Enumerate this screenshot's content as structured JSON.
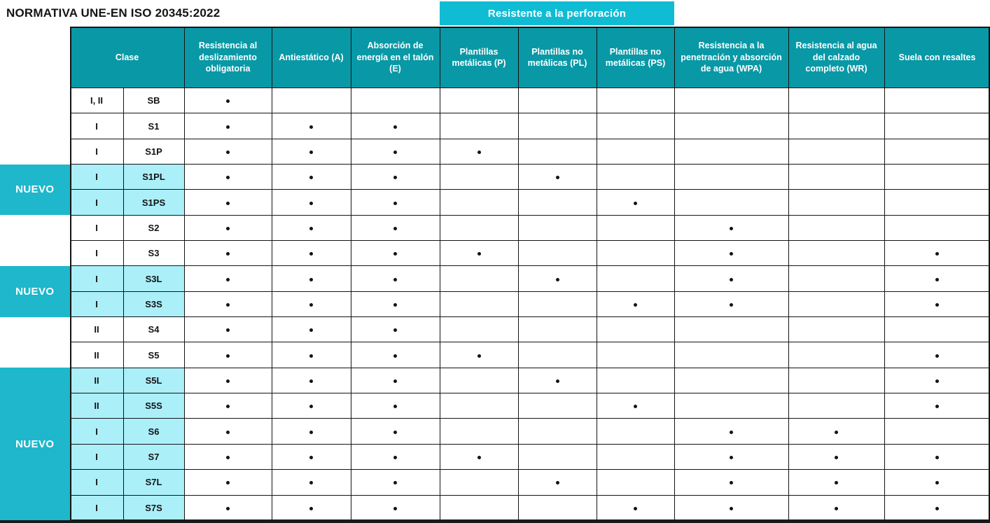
{
  "title": "NORMATIVA UNE-EN ISO 20345:2022",
  "banner": {
    "label": "Resistente a la perforación"
  },
  "nuevo_label": "NUEVO",
  "colors": {
    "header_teal": "#0998A6",
    "banner_cyan": "#0FBCD4",
    "nuevo_cyan": "#1EB7CC",
    "row_highlight": "#ABEFF9",
    "grid_border": "#141414",
    "dot": "#141414"
  },
  "table": {
    "clase_header": "Clase",
    "columns": [
      {
        "id": "slip",
        "label": "Resistencia al deslizamiento obligatoria"
      },
      {
        "id": "a",
        "label": "Antiestático (A)"
      },
      {
        "id": "e",
        "label": "Absorción de energía en el talón (E)"
      },
      {
        "id": "p",
        "label": "Plantillas metálicas (P)"
      },
      {
        "id": "pl",
        "label": "Plantillas no metálicas (PL)"
      },
      {
        "id": "ps",
        "label": "Plantillas no metálicas (PS)"
      },
      {
        "id": "wpa",
        "label": "Resistencia a la penetración y absorción de agua (WPA)"
      },
      {
        "id": "wr",
        "label": "Resistencia al agua del calzado completo (WR)"
      },
      {
        "id": "lug",
        "label": "Suela con resaltes"
      }
    ],
    "rows": [
      {
        "clase": "I, II",
        "code": "SB",
        "nuevo": false,
        "dots": [
          1,
          0,
          0,
          0,
          0,
          0,
          0,
          0,
          0
        ]
      },
      {
        "clase": "I",
        "code": "S1",
        "nuevo": false,
        "dots": [
          1,
          1,
          1,
          0,
          0,
          0,
          0,
          0,
          0
        ]
      },
      {
        "clase": "I",
        "code": "S1P",
        "nuevo": false,
        "dots": [
          1,
          1,
          1,
          1,
          0,
          0,
          0,
          0,
          0
        ]
      },
      {
        "clase": "I",
        "code": "S1PL",
        "nuevo": true,
        "dots": [
          1,
          1,
          1,
          0,
          1,
          0,
          0,
          0,
          0
        ]
      },
      {
        "clase": "I",
        "code": "S1PS",
        "nuevo": true,
        "dots": [
          1,
          1,
          1,
          0,
          0,
          1,
          0,
          0,
          0
        ]
      },
      {
        "clase": "I",
        "code": "S2",
        "nuevo": false,
        "dots": [
          1,
          1,
          1,
          0,
          0,
          0,
          1,
          0,
          0
        ]
      },
      {
        "clase": "I",
        "code": "S3",
        "nuevo": false,
        "dots": [
          1,
          1,
          1,
          1,
          0,
          0,
          1,
          0,
          1
        ]
      },
      {
        "clase": "I",
        "code": "S3L",
        "nuevo": true,
        "dots": [
          1,
          1,
          1,
          0,
          1,
          0,
          1,
          0,
          1
        ]
      },
      {
        "clase": "I",
        "code": "S3S",
        "nuevo": true,
        "dots": [
          1,
          1,
          1,
          0,
          0,
          1,
          1,
          0,
          1
        ]
      },
      {
        "clase": "II",
        "code": "S4",
        "nuevo": false,
        "dots": [
          1,
          1,
          1,
          0,
          0,
          0,
          0,
          0,
          0
        ]
      },
      {
        "clase": "II",
        "code": "S5",
        "nuevo": false,
        "dots": [
          1,
          1,
          1,
          1,
          0,
          0,
          0,
          0,
          1
        ]
      },
      {
        "clase": "II",
        "code": "S5L",
        "nuevo": true,
        "dots": [
          1,
          1,
          1,
          0,
          1,
          0,
          0,
          0,
          1
        ]
      },
      {
        "clase": "II",
        "code": "S5S",
        "nuevo": true,
        "dots": [
          1,
          1,
          1,
          0,
          0,
          1,
          0,
          0,
          1
        ]
      },
      {
        "clase": "I",
        "code": "S6",
        "nuevo": true,
        "dots": [
          1,
          1,
          1,
          0,
          0,
          0,
          1,
          1,
          0
        ]
      },
      {
        "clase": "I",
        "code": "S7",
        "nuevo": true,
        "dots": [
          1,
          1,
          1,
          1,
          0,
          0,
          1,
          1,
          1
        ]
      },
      {
        "clase": "I",
        "code": "S7L",
        "nuevo": true,
        "dots": [
          1,
          1,
          1,
          0,
          1,
          0,
          1,
          1,
          1
        ]
      },
      {
        "clase": "I",
        "code": "S7S",
        "nuevo": true,
        "dots": [
          1,
          1,
          1,
          0,
          0,
          1,
          1,
          1,
          1
        ]
      }
    ]
  }
}
